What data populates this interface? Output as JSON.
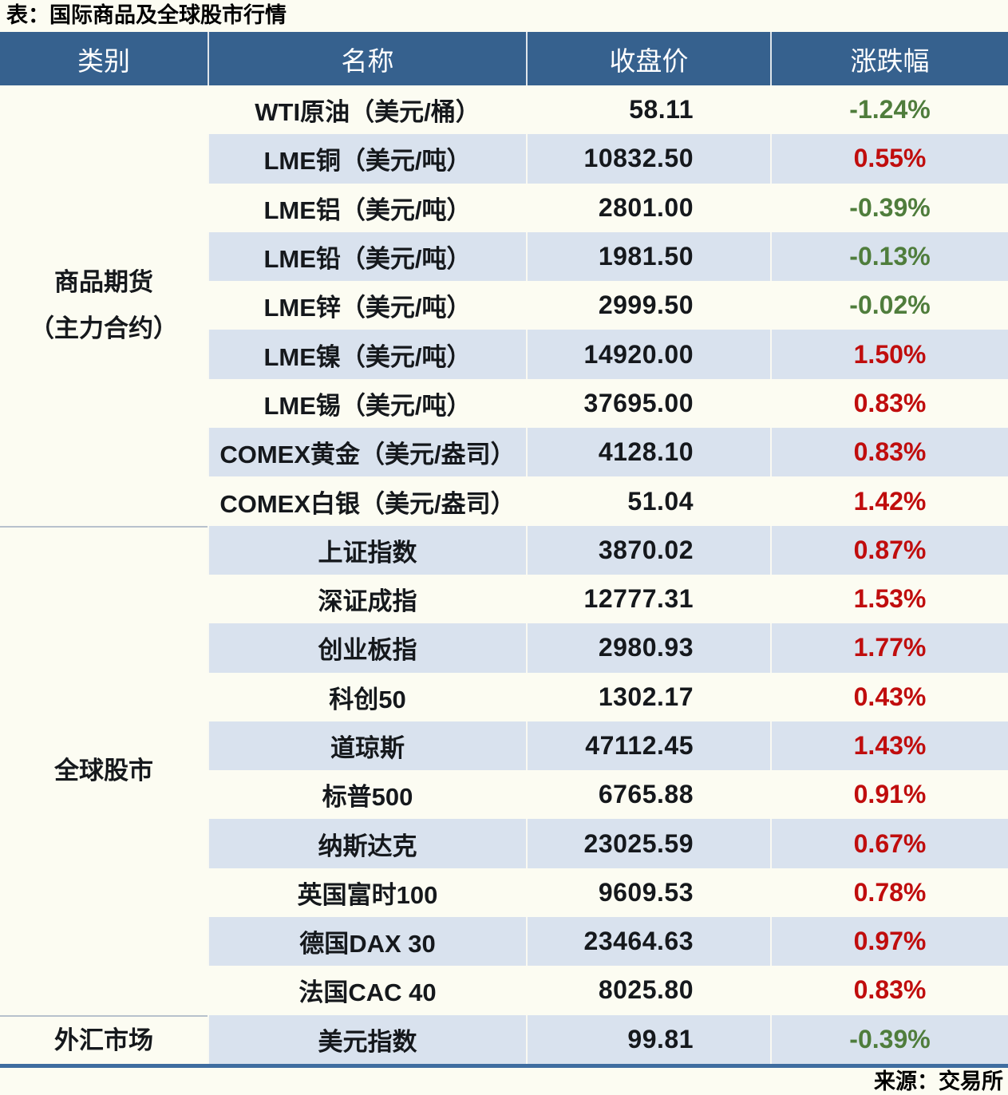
{
  "title": "表：国际商品及全球股市行情",
  "source_note": "来源：交易所",
  "colors": {
    "up": "#c00d0d",
    "down": "#4f7d3c",
    "header_bg": "#36618e",
    "row_alt": "#d9e2ee",
    "row_base": "#fcfcf2",
    "bottom_rule": "#3f6da0"
  },
  "chart_data": {
    "type": "table",
    "title": "表：国际商品及全球股市行情",
    "columns": [
      "类别",
      "名称",
      "收盘价",
      "涨跌幅"
    ],
    "groups": [
      {
        "category": "商品期货（主力合约）",
        "category_lines": [
          "商品期货",
          "（主力合约）"
        ],
        "rows": [
          {
            "name": "WTI原油（美元/桶）",
            "close": "58.11",
            "change": "-1.24%",
            "direction": "down"
          },
          {
            "name": "LME铜（美元/吨）",
            "close": "10832.50",
            "change": "0.55%",
            "direction": "up"
          },
          {
            "name": "LME铝（美元/吨）",
            "close": "2801.00",
            "change": "-0.39%",
            "direction": "down"
          },
          {
            "name": "LME铅（美元/吨）",
            "close": "1981.50",
            "change": "-0.13%",
            "direction": "down"
          },
          {
            "name": "LME锌（美元/吨）",
            "close": "2999.50",
            "change": "-0.02%",
            "direction": "down"
          },
          {
            "name": "LME镍（美元/吨）",
            "close": "14920.00",
            "change": "1.50%",
            "direction": "up"
          },
          {
            "name": "LME锡（美元/吨）",
            "close": "37695.00",
            "change": "0.83%",
            "direction": "up"
          },
          {
            "name": "COMEX黄金（美元/盎司）",
            "close": "4128.10",
            "change": "0.83%",
            "direction": "up"
          },
          {
            "name": "COMEX白银（美元/盎司）",
            "close": "51.04",
            "change": "1.42%",
            "direction": "up"
          }
        ]
      },
      {
        "category": "全球股市",
        "category_lines": [
          "全球股市"
        ],
        "rows": [
          {
            "name": "上证指数",
            "close": "3870.02",
            "change": "0.87%",
            "direction": "up"
          },
          {
            "name": "深证成指",
            "close": "12777.31",
            "change": "1.53%",
            "direction": "up"
          },
          {
            "name": "创业板指",
            "close": "2980.93",
            "change": "1.77%",
            "direction": "up"
          },
          {
            "name": "科创50",
            "close": "1302.17",
            "change": "0.43%",
            "direction": "up"
          },
          {
            "name": "道琼斯",
            "close": "47112.45",
            "change": "1.43%",
            "direction": "up"
          },
          {
            "name": "标普500",
            "close": "6765.88",
            "change": "0.91%",
            "direction": "up"
          },
          {
            "name": "纳斯达克",
            "close": "23025.59",
            "change": "0.67%",
            "direction": "up"
          },
          {
            "name": "英国富时100",
            "close": "9609.53",
            "change": "0.78%",
            "direction": "up"
          },
          {
            "name": "德国DAX 30",
            "close": "23464.63",
            "change": "0.97%",
            "direction": "up"
          },
          {
            "name": "法国CAC 40",
            "close": "8025.80",
            "change": "0.83%",
            "direction": "up"
          }
        ]
      },
      {
        "category": "外汇市场",
        "category_lines": [
          "外汇市场"
        ],
        "rows": [
          {
            "name": "美元指数",
            "close": "99.81",
            "change": "-0.39%",
            "direction": "down"
          }
        ]
      }
    ],
    "source_note": "来源：交易所"
  }
}
